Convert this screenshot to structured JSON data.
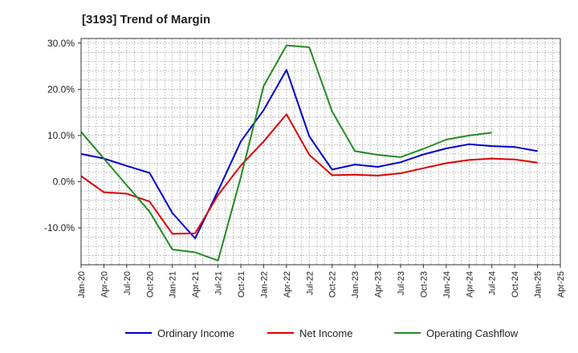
{
  "chart_data": {
    "type": "line",
    "title": "[3193]  Trend of Margin",
    "xlabel": "",
    "ylabel": "",
    "ylim": [
      -18,
      31
    ],
    "y_ticks": [
      30,
      20,
      10,
      0,
      -10
    ],
    "y_tick_labels": [
      "30.0%",
      "20.0%",
      "10.0%",
      "0.0%",
      "-10.0%"
    ],
    "x_tick_labels": [
      "Jan-20",
      "Apr-20",
      "Jul-20",
      "Oct-20",
      "Jan-21",
      "Apr-21",
      "Jul-21",
      "Oct-21",
      "Jan-22",
      "Apr-22",
      "Jul-22",
      "Oct-22",
      "Jan-23",
      "Apr-23",
      "Jul-23",
      "Oct-23",
      "Jan-24",
      "Apr-24",
      "Jul-24",
      "Oct-24",
      "Jan-25",
      "Apr-25"
    ],
    "x_unit": "quarter index from Jan-20",
    "grid": true,
    "legend_position": "bottom",
    "series": [
      {
        "name": "Ordinary Income",
        "color": "#0000cc",
        "x": [
          0,
          1,
          2,
          3,
          4,
          5,
          6,
          7,
          8,
          9,
          10,
          11,
          12,
          13,
          14,
          15,
          16,
          17,
          18,
          19,
          20
        ],
        "values": [
          6.0,
          5.0,
          3.4,
          1.9,
          -6.8,
          -12.3,
          -2.0,
          8.7,
          15.5,
          24.2,
          9.8,
          2.6,
          3.7,
          3.2,
          4.2,
          5.9,
          7.2,
          8.1,
          7.7,
          7.5,
          6.6
        ]
      },
      {
        "name": "Net Income",
        "color": "#dd0000",
        "x": [
          0,
          1,
          2,
          3,
          4,
          5,
          6,
          7,
          8,
          9,
          10,
          11,
          12,
          13,
          14,
          15,
          16,
          17,
          18,
          19,
          20
        ],
        "values": [
          1.2,
          -2.3,
          -2.6,
          -4.3,
          -11.3,
          -11.2,
          -2.9,
          3.5,
          8.7,
          14.6,
          5.8,
          1.4,
          1.5,
          1.3,
          1.8,
          2.9,
          4.0,
          4.7,
          5.0,
          4.8,
          4.1
        ]
      },
      {
        "name": "Operating Cashflow",
        "color": "#228B22",
        "x": [
          0,
          1,
          2,
          3,
          4,
          5,
          6,
          7,
          8,
          9,
          10,
          11,
          12,
          13,
          14,
          15,
          16,
          17,
          18
        ],
        "values": [
          10.8,
          5.0,
          -0.8,
          -6.5,
          -14.7,
          -15.3,
          -17.1,
          1.0,
          20.7,
          29.5,
          29.1,
          15.2,
          6.6,
          5.8,
          5.3,
          7.1,
          9.1,
          10.0,
          10.6
        ]
      }
    ]
  }
}
